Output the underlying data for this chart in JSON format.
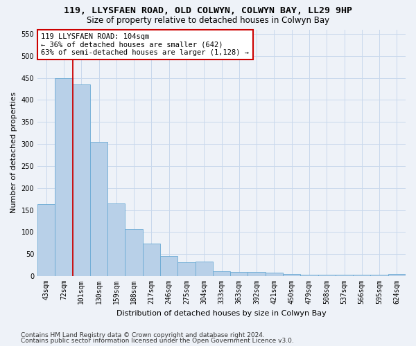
{
  "title_line1": "119, LLYSFAEN ROAD, OLD COLWYN, COLWYN BAY, LL29 9HP",
  "title_line2": "Size of property relative to detached houses in Colwyn Bay",
  "xlabel": "Distribution of detached houses by size in Colwyn Bay",
  "ylabel": "Number of detached properties",
  "categories": [
    "43sqm",
    "72sqm",
    "101sqm",
    "130sqm",
    "159sqm",
    "188sqm",
    "217sqm",
    "246sqm",
    "275sqm",
    "304sqm",
    "333sqm",
    "363sqm",
    "392sqm",
    "421sqm",
    "450sqm",
    "479sqm",
    "508sqm",
    "537sqm",
    "566sqm",
    "595sqm",
    "624sqm"
  ],
  "values": [
    163,
    450,
    435,
    305,
    165,
    107,
    74,
    45,
    32,
    33,
    11,
    10,
    10,
    8,
    5,
    4,
    4,
    3,
    3,
    3,
    5
  ],
  "bar_color": "#b8d0e8",
  "bar_edge_color": "#6aaad4",
  "grid_color": "#c8d8ec",
  "vline_x": 2.0,
  "vline_color": "#cc0000",
  "annotation_text": "119 LLYSFAEN ROAD: 104sqm\n← 36% of detached houses are smaller (642)\n63% of semi-detached houses are larger (1,128) →",
  "annotation_box_color": "#ffffff",
  "annotation_box_edge_color": "#cc0000",
  "ylim": [
    0,
    560
  ],
  "yticks": [
    0,
    50,
    100,
    150,
    200,
    250,
    300,
    350,
    400,
    450,
    500,
    550
  ],
  "footer_line1": "Contains HM Land Registry data © Crown copyright and database right 2024.",
  "footer_line2": "Contains public sector information licensed under the Open Government Licence v3.0.",
  "background_color": "#eef2f8",
  "title_fontsize": 9.5,
  "subtitle_fontsize": 8.5,
  "axis_label_fontsize": 8,
  "tick_fontsize": 7,
  "annotation_fontsize": 7.5,
  "footer_fontsize": 6.5
}
